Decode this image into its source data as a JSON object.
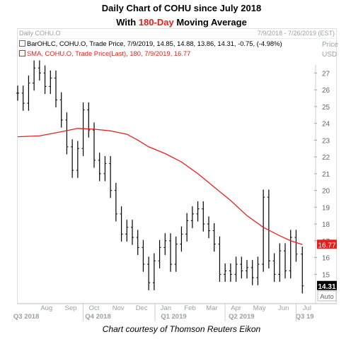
{
  "header": {
    "title_line1": "Daily Chart of COHU since July 2018",
    "title_line2_prefix": "With ",
    "title_line2_highlight": "180-Day",
    "title_line2_suffix": " Moving Average"
  },
  "panel": {
    "label": "Daily COHU.O",
    "date_range": "7/9/2018 - 7/26/2019 (EST)",
    "price_label": "Price",
    "currency_label": "USD",
    "legend_bar": "BarOHLC, COHU.O, Trade Price, 7/9/2019, 14.85, 14.88, 13.86, 14.31, -0.75, (-4.98%)",
    "legend_sma": "SMA, COHU.O, Trade Price(Last), 180, 7/9/2019, 16.77",
    "auto_label": "Auto"
  },
  "credit": "Chart courtesy of Thomson Reuters Eikon",
  "colors": {
    "sma": "#e8201c",
    "bars": "#000000",
    "sma_tag": "#e8201c",
    "price_tag": "#000000",
    "title_highlight": "#e8201c"
  },
  "chart_data": {
    "type": "line",
    "y_ticks": [
      15,
      16,
      17,
      18,
      19,
      20,
      21,
      22,
      23,
      24,
      25,
      26,
      27
    ],
    "ylim": [
      13.5,
      27.9
    ],
    "x_month_labels": [
      "Aug",
      "Sep",
      "Oct",
      "Nov",
      "Dec",
      "Jan",
      "Feb",
      "Mar",
      "Apr",
      "May",
      "Jun",
      "Jul"
    ],
    "x_quarter_labels": [
      "Q3 2018",
      "Q4 2018",
      "Q1 2019",
      "Q2 2019",
      "Q3 19"
    ],
    "last_price": 14.31,
    "last_sma": 16.77,
    "series": [
      {
        "type": "ohlc",
        "points": [
          {
            "x": "2018-07-09",
            "y": 25.8
          },
          {
            "x": "2018-07-16",
            "y": 25.2
          },
          {
            "x": "2018-07-23",
            "y": 26.4
          },
          {
            "x": "2018-07-30",
            "y": 27.3
          },
          {
            "x": "2018-08-06",
            "y": 27.0
          },
          {
            "x": "2018-08-13",
            "y": 26.2
          },
          {
            "x": "2018-08-20",
            "y": 26.7
          },
          {
            "x": "2018-08-27",
            "y": 25.4
          },
          {
            "x": "2018-09-03",
            "y": 24.2
          },
          {
            "x": "2018-09-10",
            "y": 22.6
          },
          {
            "x": "2018-09-17",
            "y": 21.2
          },
          {
            "x": "2018-09-24",
            "y": 22.5
          },
          {
            "x": "2018-10-01",
            "y": 24.8
          },
          {
            "x": "2018-10-08",
            "y": 23.6
          },
          {
            "x": "2018-10-15",
            "y": 21.8
          },
          {
            "x": "2018-10-22",
            "y": 21.0
          },
          {
            "x": "2018-10-29",
            "y": 21.6
          },
          {
            "x": "2018-11-05",
            "y": 20.0
          },
          {
            "x": "2018-11-12",
            "y": 18.6
          },
          {
            "x": "2018-11-19",
            "y": 17.4
          },
          {
            "x": "2018-11-26",
            "y": 17.8
          },
          {
            "x": "2018-12-03",
            "y": 17.2
          },
          {
            "x": "2018-12-10",
            "y": 16.6
          },
          {
            "x": "2018-12-17",
            "y": 15.6
          },
          {
            "x": "2018-12-24",
            "y": 14.5
          },
          {
            "x": "2018-12-31",
            "y": 15.8
          },
          {
            "x": "2019-01-07",
            "y": 16.6
          },
          {
            "x": "2019-01-14",
            "y": 17.0
          },
          {
            "x": "2019-01-21",
            "y": 15.6
          },
          {
            "x": "2019-01-28",
            "y": 16.8
          },
          {
            "x": "2019-02-04",
            "y": 17.4
          },
          {
            "x": "2019-02-11",
            "y": 18.2
          },
          {
            "x": "2019-02-18",
            "y": 18.6
          },
          {
            "x": "2019-02-25",
            "y": 18.9
          },
          {
            "x": "2019-03-04",
            "y": 18.0
          },
          {
            "x": "2019-03-11",
            "y": 17.6
          },
          {
            "x": "2019-03-18",
            "y": 16.8
          },
          {
            "x": "2019-03-25",
            "y": 15.0
          },
          {
            "x": "2019-04-01",
            "y": 15.2
          },
          {
            "x": "2019-04-08",
            "y": 15.0
          },
          {
            "x": "2019-04-15",
            "y": 15.6
          },
          {
            "x": "2019-04-22",
            "y": 15.2
          },
          {
            "x": "2019-04-29",
            "y": 15.4
          },
          {
            "x": "2019-05-06",
            "y": 14.8
          },
          {
            "x": "2019-05-13",
            "y": 15.6
          },
          {
            "x": "2019-05-20",
            "y": 19.6
          },
          {
            "x": "2019-05-27",
            "y": 15.8
          },
          {
            "x": "2019-06-03",
            "y": 15.0
          },
          {
            "x": "2019-06-10",
            "y": 16.4
          },
          {
            "x": "2019-06-17",
            "y": 15.2
          },
          {
            "x": "2019-06-24",
            "y": 17.2
          },
          {
            "x": "2019-07-01",
            "y": 16.2
          },
          {
            "x": "2019-07-09",
            "y": 14.31
          }
        ]
      },
      {
        "name": "SMA",
        "points": [
          {
            "x": "2018-07-09",
            "y": 23.2
          },
          {
            "x": "2018-08-06",
            "y": 23.25
          },
          {
            "x": "2018-09-03",
            "y": 23.5
          },
          {
            "x": "2018-09-24",
            "y": 23.7
          },
          {
            "x": "2018-10-15",
            "y": 23.65
          },
          {
            "x": "2018-11-05",
            "y": 23.55
          },
          {
            "x": "2018-11-26",
            "y": 23.35
          },
          {
            "x": "2018-12-10",
            "y": 23.0
          },
          {
            "x": "2018-12-24",
            "y": 22.6
          },
          {
            "x": "2019-01-14",
            "y": 22.2
          },
          {
            "x": "2019-02-04",
            "y": 21.7
          },
          {
            "x": "2019-02-25",
            "y": 21.0
          },
          {
            "x": "2019-03-18",
            "y": 20.2
          },
          {
            "x": "2019-04-08",
            "y": 19.4
          },
          {
            "x": "2019-04-29",
            "y": 18.5
          },
          {
            "x": "2019-05-20",
            "y": 17.8
          },
          {
            "x": "2019-06-10",
            "y": 17.3
          },
          {
            "x": "2019-06-24",
            "y": 17.0
          },
          {
            "x": "2019-07-09",
            "y": 16.77
          }
        ]
      }
    ]
  }
}
